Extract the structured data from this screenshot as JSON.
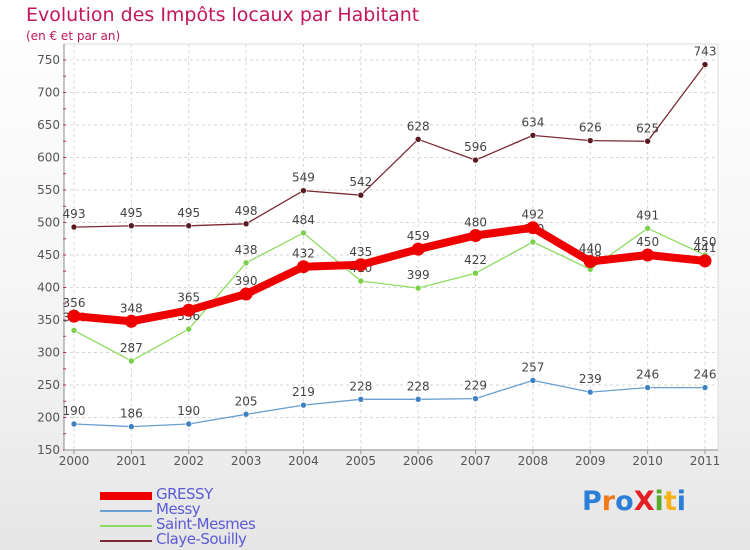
{
  "title": "Evolution des Impôts locaux par Habitant",
  "subtitle": "(en € et par an)",
  "logo": {
    "text": "ProXiti",
    "letters": [
      "P",
      "r",
      "o",
      "X",
      "i",
      "t",
      "i"
    ],
    "colors": [
      "#2b7fd6",
      "#f07a1a",
      "#2b7fd6",
      "#e31e24",
      "#5aaa2a",
      "#f7b21a",
      "#2b7fd6"
    ]
  },
  "chart_data": {
    "type": "line",
    "categories": [
      "2000",
      "2001",
      "2002",
      "2003",
      "2004",
      "2005",
      "2006",
      "2007",
      "2008",
      "2009",
      "2010",
      "2011"
    ],
    "y_ticks": [
      150,
      200,
      250,
      300,
      350,
      400,
      450,
      500,
      550,
      600,
      650,
      700,
      750
    ],
    "ylim": [
      150,
      750
    ],
    "grid": true,
    "legend_position": "bottom-left",
    "series": [
      {
        "name": "Claye-Souilly",
        "color": "#7a2a35",
        "marker": "#5a1a22",
        "width": 1.3,
        "values": [
          493,
          495,
          495,
          498,
          549,
          542,
          628,
          596,
          634,
          626,
          625,
          743
        ],
        "labels": [
          "493",
          "495",
          "495",
          "498",
          "549",
          "542",
          "628",
          "596",
          "634",
          "626",
          "625",
          "743"
        ]
      },
      {
        "name": "Saint-Mesmes",
        "color": "#8fdc60",
        "marker": "#7ad04a",
        "width": 1.3,
        "values": [
          334,
          287,
          336,
          438,
          484,
          410,
          399,
          422,
          470,
          428,
          491,
          450
        ],
        "labels": [
          "334",
          "287",
          "336",
          "438",
          "484",
          "410",
          "399",
          "422",
          "470",
          "428",
          "491",
          "450"
        ]
      },
      {
        "name": "Messy",
        "color": "#6a9fcf",
        "marker": "#3f82c4",
        "width": 1.3,
        "values": [
          190,
          186,
          190,
          205,
          219,
          228,
          228,
          229,
          257,
          239,
          246,
          246
        ],
        "labels": [
          "190",
          "186",
          "190",
          "205",
          "219",
          "228",
          "228",
          "229",
          "257",
          "239",
          "246",
          "246"
        ]
      },
      {
        "name": "GRESSY",
        "color": "#ee0000",
        "marker": "#ee0000",
        "width": 8,
        "values": [
          356,
          348,
          365,
          390,
          432,
          435,
          459,
          480,
          492,
          440,
          450,
          441
        ],
        "labels": [
          "356",
          "348",
          "365",
          "390",
          "432",
          "435",
          "459",
          "480",
          "492",
          "440",
          "450",
          "441"
        ]
      }
    ],
    "legend": [
      {
        "name": "GRESSY",
        "color": "#ee0000",
        "text_color": "#5b5bd6",
        "thickness": 8
      },
      {
        "name": "Messy",
        "color": "#6a9fcf",
        "text_color": "#5b5bd6",
        "thickness": 2
      },
      {
        "name": "Saint-Mesmes",
        "color": "#8fdc60",
        "text_color": "#5b5bd6",
        "thickness": 2
      },
      {
        "name": "Claye-Souilly",
        "color": "#7a2a35",
        "text_color": "#5b5bd6",
        "thickness": 2
      }
    ]
  }
}
